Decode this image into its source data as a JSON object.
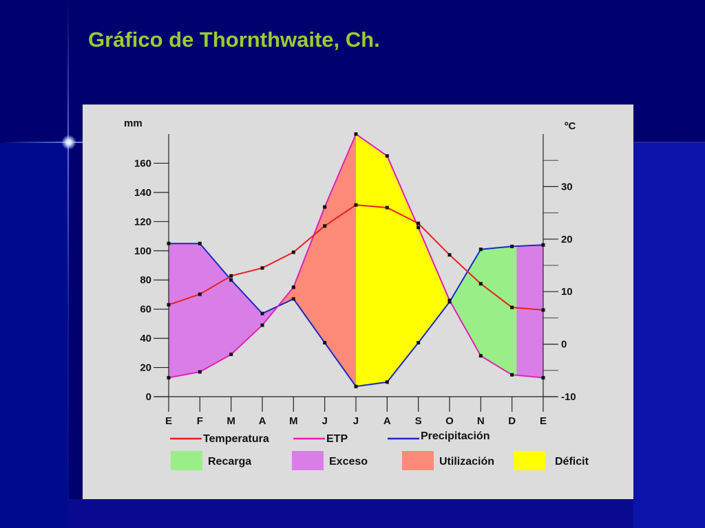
{
  "slide": {
    "title": "Gráfico de Thornthwaite, Ch."
  },
  "colors": {
    "background": "#00006e",
    "title": "#99cc33",
    "panel": "#dcdcdc",
    "recarga": "#99ee88",
    "exceso": "#d97ee6",
    "utilizacion": "#fb8a78",
    "deficit": "#ffff00",
    "temperatura": "#e82020",
    "etp": "#e020b8",
    "precipitacion": "#1a28c8"
  },
  "chart_data": {
    "type": "line",
    "left_unit": "mm",
    "right_unit": "ºC",
    "categories": [
      "E",
      "F",
      "M",
      "A",
      "M",
      "J",
      "J",
      "A",
      "S",
      "O",
      "N",
      "D",
      "E"
    ],
    "ylim": [
      0,
      180
    ],
    "y2lim": [
      -10,
      40
    ],
    "yticks": [
      0,
      20,
      40,
      60,
      80,
      100,
      120,
      140,
      160
    ],
    "y2ticks": [
      -10,
      0,
      10,
      20,
      30
    ],
    "series": [
      {
        "name": "Temperatura",
        "axis": "right",
        "values": [
          7.5,
          9.5,
          13,
          14.5,
          17.5,
          22.5,
          26.5,
          26,
          23,
          17,
          11.5,
          7,
          6.5
        ]
      },
      {
        "name": "ETP",
        "axis": "left",
        "values": [
          13,
          17,
          29,
          49,
          75,
          130,
          180,
          165,
          116,
          66,
          28,
          15,
          13
        ]
      },
      {
        "name": "Precipitación",
        "axis": "left",
        "values": [
          105,
          105,
          80,
          57,
          67,
          37,
          7,
          10,
          37,
          65,
          101,
          103,
          104
        ]
      }
    ],
    "regions": [
      {
        "name": "Recarga",
        "color": "recarga"
      },
      {
        "name": "Exceso",
        "color": "exceso"
      },
      {
        "name": "Utilización",
        "color": "utilizacion"
      },
      {
        "name": "Déficit",
        "color": "deficit"
      }
    ],
    "legend": {
      "lines": [
        "Temperatura",
        "ETP",
        "Precipitación"
      ],
      "areas": [
        "Recarga",
        "Exceso",
        "Utilización",
        "Déficit"
      ]
    }
  }
}
